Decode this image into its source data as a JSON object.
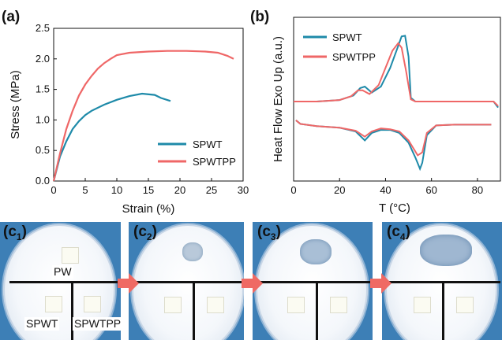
{
  "panel_labels": {
    "a": "(a)",
    "b": "(b)"
  },
  "colors": {
    "SPWT": "#1e8aa9",
    "SPWTPP": "#ef6767",
    "arrow": "#ef6a64",
    "photo_bg": "#3d7fb6"
  },
  "chart_data": [
    {
      "type": "line",
      "panel": "(a)",
      "title": "",
      "xlabel": "Strain (%)",
      "ylabel": "Stress (MPa)",
      "xlim": [
        0,
        30
      ],
      "ylim": [
        0,
        2.5
      ],
      "xticks": [
        "0",
        "5",
        "10",
        "15",
        "20",
        "25",
        "30"
      ],
      "yticks": [
        "0.0",
        "0.5",
        "1.0",
        "1.5",
        "2.0",
        "2.5"
      ],
      "legend_position": "bottom-right",
      "series": [
        {
          "name": "SPWT",
          "x": [
            0,
            1,
            2,
            3,
            4,
            5,
            6,
            8,
            10,
            12,
            14,
            16,
            17,
            18.5
          ],
          "y": [
            0,
            0.4,
            0.65,
            0.85,
            0.98,
            1.08,
            1.15,
            1.25,
            1.33,
            1.39,
            1.43,
            1.41,
            1.36,
            1.31
          ]
        },
        {
          "name": "SPWTPP",
          "x": [
            0,
            1,
            2,
            3,
            4,
            5,
            6,
            7,
            8,
            9,
            10,
            12,
            15,
            18,
            21,
            24,
            26,
            27.5,
            28.5
          ],
          "y": [
            0,
            0.45,
            0.85,
            1.15,
            1.4,
            1.58,
            1.72,
            1.84,
            1.93,
            2.0,
            2.06,
            2.1,
            2.12,
            2.13,
            2.13,
            2.12,
            2.1,
            2.05,
            2.0
          ]
        }
      ]
    },
    {
      "type": "line",
      "panel": "(b)",
      "title": "",
      "xlabel": "T (°C)",
      "ylabel": "Heat Flow Exo Up (a.u.)",
      "xlim": [
        0,
        90
      ],
      "xticks": [
        "0",
        "20",
        "40",
        "60",
        "80"
      ],
      "legend_position": "top-left",
      "series": [
        {
          "name": "SPWT",
          "x": [
            0,
            10,
            20,
            26,
            29,
            31,
            34,
            38,
            42,
            45,
            47,
            48.5,
            50,
            51,
            53,
            60,
            70,
            80,
            87,
            89
          ],
          "y": [
            0.0,
            0.0,
            0.02,
            0.08,
            0.18,
            0.2,
            0.12,
            0.2,
            0.45,
            0.7,
            0.87,
            0.88,
            0.6,
            0.05,
            0.0,
            0.0,
            0.0,
            0.0,
            0.0,
            -0.08
          ],
          "cooling_x": [
            1,
            3,
            10,
            20,
            27,
            31,
            34,
            38,
            42,
            46,
            50,
            53,
            55,
            56,
            58,
            62,
            70,
            80,
            86
          ],
          "cooling_y": [
            -0.25,
            -0.3,
            -0.33,
            -0.35,
            -0.4,
            -0.52,
            -0.42,
            -0.38,
            -0.38,
            -0.42,
            -0.55,
            -0.75,
            -0.9,
            -0.82,
            -0.45,
            -0.32,
            -0.31,
            -0.31,
            -0.31
          ]
        },
        {
          "name": "SPWTPP",
          "x": [
            0,
            10,
            20,
            25,
            28,
            30,
            33,
            37,
            40,
            43,
            45.5,
            47,
            49,
            51,
            53,
            60,
            70,
            80,
            87,
            89
          ],
          "y": [
            0.0,
            0.0,
            0.02,
            0.07,
            0.15,
            0.15,
            0.1,
            0.22,
            0.45,
            0.68,
            0.78,
            0.72,
            0.4,
            0.03,
            0.0,
            0.0,
            0.0,
            0.0,
            0.0,
            -0.06
          ],
          "cooling_x": [
            1,
            3,
            10,
            20,
            27,
            31,
            34,
            38,
            42,
            46,
            50,
            52,
            54,
            56,
            58,
            62,
            70,
            80,
            86
          ],
          "cooling_y": [
            -0.25,
            -0.3,
            -0.33,
            -0.35,
            -0.39,
            -0.47,
            -0.4,
            -0.36,
            -0.37,
            -0.4,
            -0.52,
            -0.62,
            -0.72,
            -0.68,
            -0.42,
            -0.32,
            -0.31,
            -0.31,
            -0.31
          ]
        }
      ]
    }
  ],
  "photos": {
    "labels": [
      "c1",
      "c2",
      "c3",
      "c4"
    ],
    "label_prefix": "(c",
    "label_suffix": ")",
    "pw_label": "PW",
    "spwt_label": "SPWT",
    "spwtpp_label": "SPWTPP"
  }
}
